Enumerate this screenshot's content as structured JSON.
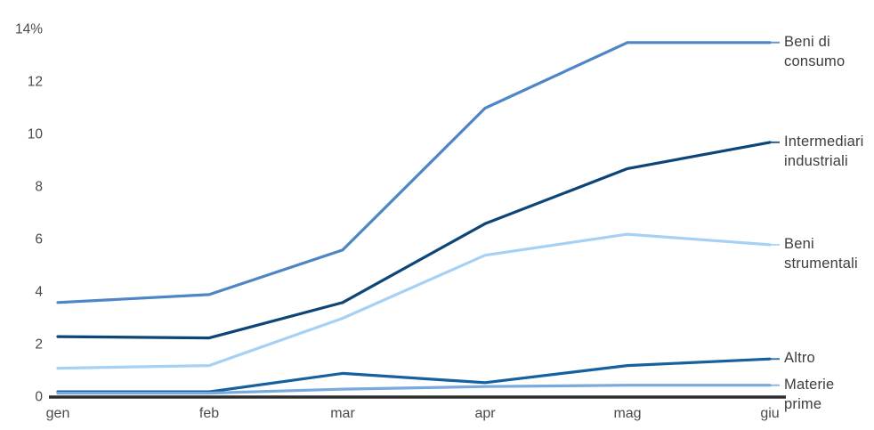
{
  "chart_data": {
    "type": "line",
    "title": "",
    "xlabel": "",
    "ylabel": "",
    "unit": "%",
    "grid": false,
    "legend_position": "right-end-labels",
    "x_categories": [
      "gen",
      "feb",
      "mar",
      "apr",
      "mag",
      "giu"
    ],
    "y_ticks": [
      {
        "label": "14%",
        "value": 14
      },
      {
        "label": "12",
        "value": 12
      },
      {
        "label": "10",
        "value": 10
      },
      {
        "label": "8",
        "value": 8
      },
      {
        "label": "6",
        "value": 6
      },
      {
        "label": "4",
        "value": 4
      },
      {
        "label": "2",
        "value": 2
      },
      {
        "label": "0",
        "value": 0
      }
    ],
    "ylim": [
      0,
      14
    ],
    "series": [
      {
        "name": "Beni di consumo",
        "label_lines": [
          "Beni di",
          "consumo"
        ],
        "color": "#4d86c6",
        "values": [
          3.6,
          3.9,
          5.6,
          11.0,
          13.5,
          13.5
        ]
      },
      {
        "name": "Intermediari industriali",
        "label_lines": [
          "Intermediari",
          "industriali"
        ],
        "color": "#0e4579",
        "values": [
          2.3,
          2.25,
          3.6,
          6.6,
          8.7,
          9.7
        ]
      },
      {
        "name": "Beni strumentali",
        "label_lines": [
          "Beni",
          "strumentali"
        ],
        "color": "#a7d1f4",
        "values": [
          1.1,
          1.2,
          3.0,
          5.4,
          6.2,
          5.8
        ]
      },
      {
        "name": "Altro",
        "label_lines": [
          "Altro"
        ],
        "color": "#15619f",
        "values": [
          0.2,
          0.2,
          0.9,
          0.55,
          1.2,
          1.45
        ]
      },
      {
        "name": "Materie prime",
        "label_lines": [
          "Materie",
          "prime"
        ],
        "color": "#79a9dd",
        "values": [
          0.15,
          0.15,
          0.3,
          0.4,
          0.45,
          0.45
        ]
      }
    ],
    "colors": {
      "axis_line": "#2e2e2e",
      "tick_text": "#4a4a4a",
      "label_text": "#3d3d3d",
      "background": "#ffffff"
    }
  }
}
